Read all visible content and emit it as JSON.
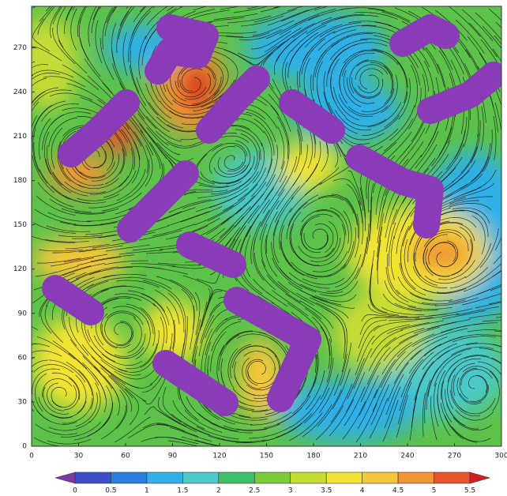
{
  "chart_data": {
    "type": "contour",
    "xlim": [
      0,
      300
    ],
    "ylim": [
      0,
      298
    ],
    "xticks": [
      0,
      30,
      60,
      90,
      120,
      150,
      180,
      210,
      240,
      270,
      300
    ],
    "yticks": [
      0,
      30,
      60,
      90,
      120,
      150,
      180,
      210,
      240,
      270
    ],
    "levels": [
      0,
      0.5,
      1,
      1.5,
      2,
      2.5,
      3,
      3.5,
      4,
      4.5,
      5,
      5.5
    ],
    "colors": [
      "#7a3aa8",
      "#3c4fc8",
      "#2a7fdc",
      "#2fb0e6",
      "#4cc9c8",
      "#3fbf6a",
      "#7acb3a",
      "#c6dc34",
      "#f2e433",
      "#f5c63a",
      "#f09634",
      "#e8552a",
      "#d61d1d"
    ]
  }
}
